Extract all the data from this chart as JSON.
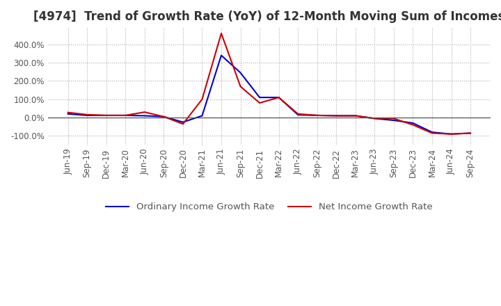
{
  "title": "[4974]  Trend of Growth Rate (YoY) of 12-Month Moving Sum of Incomes",
  "title_fontsize": 12,
  "tick_fontsize": 8.5,
  "legend_fontsize": 9.5,
  "ylim": [
    -150,
    490
  ],
  "yticks": [
    -100,
    0,
    100,
    200,
    300,
    400
  ],
  "background_color": "#ffffff",
  "grid_color": "#aaaaaa",
  "line1_color": "#0000cc",
  "line2_color": "#cc0000",
  "line1_label": "Ordinary Income Growth Rate",
  "line2_label": "Net Income Growth Rate",
  "dates": [
    "Jun-19",
    "Sep-19",
    "Dec-19",
    "Mar-20",
    "Jun-20",
    "Sep-20",
    "Dec-20",
    "Mar-21",
    "Jun-21",
    "Sep-21",
    "Dec-21",
    "Mar-22",
    "Jun-22",
    "Sep-22",
    "Dec-22",
    "Mar-23",
    "Jun-23",
    "Sep-23",
    "Dec-23",
    "Mar-24",
    "Jun-24",
    "Sep-24"
  ],
  "ordinary_income_growth": [
    20,
    12,
    12,
    12,
    10,
    5,
    -25,
    10,
    340,
    245,
    110,
    110,
    15,
    12,
    10,
    10,
    -5,
    -15,
    -30,
    -80,
    -90,
    -85
  ],
  "net_income_growth": [
    28,
    16,
    12,
    12,
    30,
    5,
    -35,
    100,
    460,
    170,
    80,
    110,
    20,
    12,
    10,
    10,
    -5,
    -5,
    -40,
    -85,
    -90,
    -85
  ]
}
